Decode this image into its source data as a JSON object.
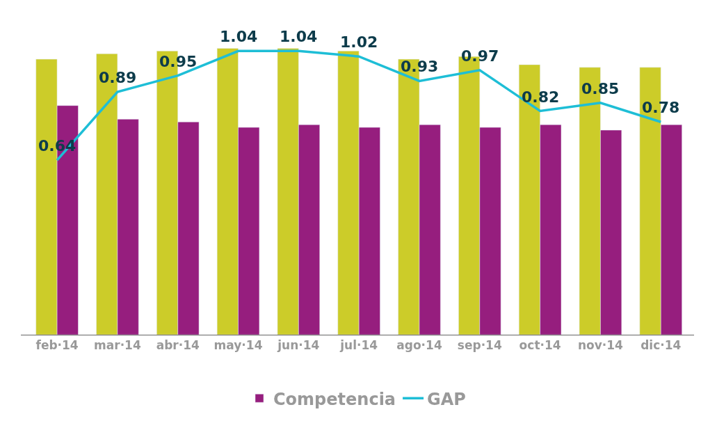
{
  "chart_data": {
    "type": "bar",
    "categories": [
      "feb·14",
      "mar·14",
      "abr·14",
      "may·14",
      "jun·14",
      "jul·14",
      "ago·14",
      "sep·14",
      "oct·14",
      "nov·14",
      "dic·14"
    ],
    "series": [
      {
        "color": "#cccc29",
        "values": [
          1.01,
          1.03,
          1.04,
          1.05,
          1.05,
          1.04,
          1.01,
          1.02,
          0.99,
          0.98,
          0.98
        ]
      },
      {
        "name": "Competencia",
        "color": "#961e7e",
        "values": [
          0.84,
          0.79,
          0.78,
          0.76,
          0.77,
          0.76,
          0.77,
          0.76,
          0.77,
          0.75,
          0.77
        ]
      },
      {
        "name": "GAP",
        "type": "line",
        "color": "#1ebed6",
        "data_labels": true,
        "values": [
          0.64,
          0.89,
          0.95,
          1.04,
          1.04,
          1.02,
          0.93,
          0.97,
          0.82,
          0.85,
          0.78
        ]
      }
    ],
    "legend": "bottom"
  }
}
